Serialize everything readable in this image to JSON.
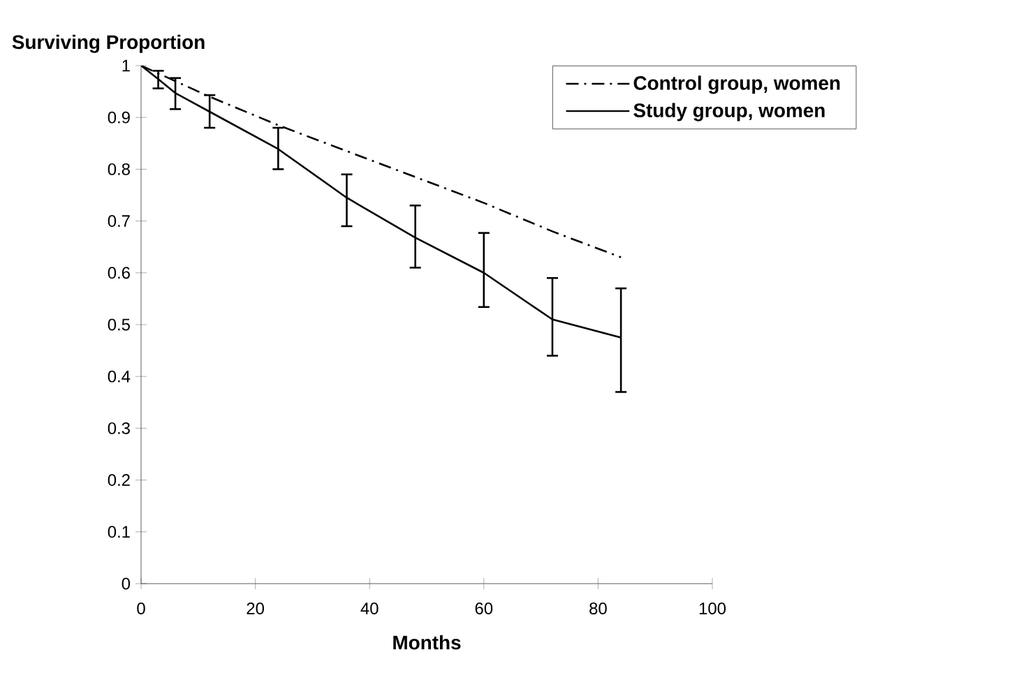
{
  "chart_data": {
    "type": "line",
    "xlabel": "Months",
    "ylabel": "Surviving Proportion",
    "xlim": [
      0,
      100
    ],
    "xticks": [
      0,
      20,
      40,
      60,
      80,
      100
    ],
    "ylim": [
      0,
      1
    ],
    "yticks": [
      0,
      0.1,
      0.2,
      0.3,
      0.4,
      0.5,
      0.6,
      0.7,
      0.8,
      0.9,
      1
    ],
    "legend": "top right",
    "grid": false,
    "series": [
      {
        "name": "Control group, women",
        "color": "#000000",
        "line_style": "dashdot",
        "x": [
          0,
          12,
          24,
          36,
          48,
          60,
          72,
          84
        ],
        "values": [
          1,
          0.94,
          0.885,
          0.835,
          0.785,
          0.735,
          0.68,
          0.63
        ]
      },
      {
        "name": "Study group, women",
        "color": "#000000",
        "line_style": "solid",
        "x": [
          0,
          3,
          6,
          12,
          24,
          36,
          48,
          60,
          72,
          84
        ],
        "values": [
          1,
          0.974,
          0.947,
          0.911,
          0.839,
          0.745,
          0.668,
          0.6,
          0.51,
          0.475
        ],
        "errors": [
          null,
          [
            0.956,
            0.99
          ],
          [
            0.916,
            0.976
          ],
          [
            0.88,
            0.943
          ],
          [
            0.8,
            0.88
          ],
          [
            0.69,
            0.79
          ],
          [
            0.61,
            0.73
          ],
          [
            0.534,
            0.677
          ],
          [
            0.44,
            0.59
          ],
          [
            0.37,
            0.57
          ]
        ]
      }
    ]
  }
}
